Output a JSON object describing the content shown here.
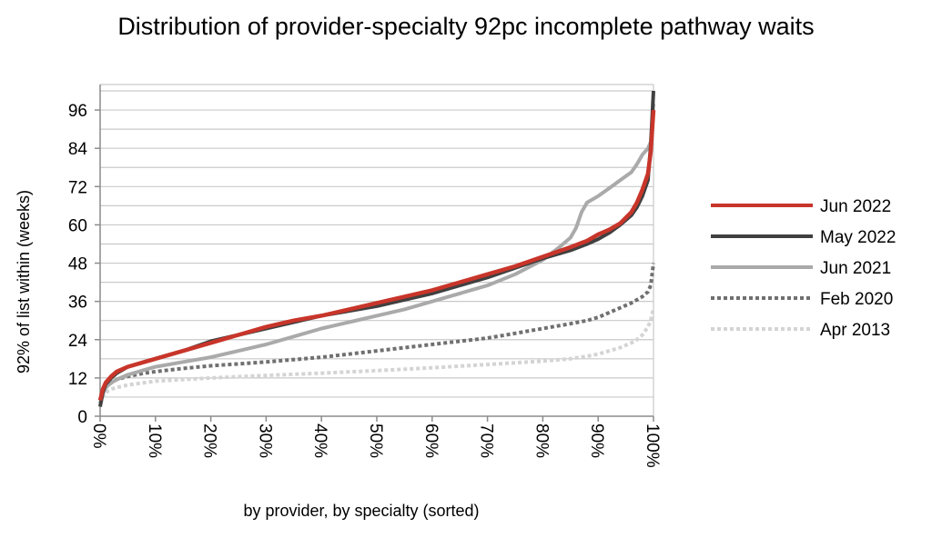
{
  "chart_data": {
    "type": "line",
    "title": "Distribution of provider-specialty 92pc incomplete pathway waits",
    "xlabel": "by provider, by specialty (sorted)",
    "ylabel": "92% of list within (weeks)",
    "xlim": [
      0,
      100
    ],
    "ylim": [
      0,
      104
    ],
    "yticks": [
      0,
      12,
      24,
      36,
      48,
      60,
      72,
      84,
      96
    ],
    "xticks": [
      "0%",
      "10%",
      "20%",
      "30%",
      "40%",
      "50%",
      "60%",
      "70%",
      "80%",
      "90%",
      "100%"
    ],
    "grid": "horizontal",
    "legend_position": "right",
    "series": [
      {
        "name": "Apr 2013",
        "color": "#d4d4d4",
        "style": "dotted",
        "x": [
          0,
          0.5,
          1,
          2,
          3,
          5,
          8,
          10,
          15,
          20,
          30,
          40,
          50,
          60,
          70,
          80,
          85,
          88,
          90,
          92,
          94,
          96,
          97,
          98,
          99,
          99.5,
          100
        ],
        "y": [
          4,
          6,
          7.5,
          8.5,
          9,
          9.8,
          10.5,
          11,
          11.5,
          12,
          12.8,
          13.5,
          14.3,
          15.2,
          16.2,
          17.3,
          18,
          18.8,
          19.5,
          20.5,
          21.5,
          23,
          24,
          25.5,
          28,
          30,
          34
        ]
      },
      {
        "name": "Feb 2020",
        "color": "#707070",
        "style": "dotted",
        "x": [
          0,
          0.5,
          1,
          2,
          3,
          5,
          8,
          10,
          15,
          20,
          30,
          40,
          50,
          60,
          70,
          75,
          80,
          85,
          88,
          90,
          92,
          94,
          96,
          97,
          98,
          99,
          99.5,
          100
        ],
        "y": [
          5,
          7.5,
          9,
          10.5,
          11.5,
          12.5,
          13.5,
          14,
          15,
          15.8,
          17,
          18.5,
          20.5,
          22.5,
          24.5,
          26,
          27.5,
          29,
          30,
          31,
          32.5,
          34,
          35.5,
          36.5,
          37.5,
          39,
          41,
          48
        ]
      },
      {
        "name": "Jun 2021",
        "color": "#aaaaaa",
        "style": "solid",
        "x": [
          0,
          0.5,
          1,
          2,
          3,
          5,
          8,
          10,
          15,
          20,
          25,
          30,
          35,
          40,
          45,
          50,
          55,
          60,
          65,
          70,
          75,
          80,
          83,
          85,
          86,
          87,
          88,
          90,
          92,
          94,
          96,
          97,
          98,
          99,
          99.5,
          100
        ],
        "y": [
          4,
          7,
          9,
          10.5,
          11.5,
          13,
          14.5,
          15.5,
          17,
          18.5,
          20.5,
          22.5,
          25,
          27.5,
          29.5,
          31.5,
          33.5,
          36,
          38.5,
          41,
          44.5,
          49,
          53,
          56,
          59,
          64,
          67,
          69,
          71.5,
          74,
          76.5,
          79,
          82,
          84,
          86,
          98
        ]
      },
      {
        "name": "May 2022",
        "color": "#404040",
        "style": "solid",
        "x": [
          0,
          0.5,
          1,
          2,
          3,
          5,
          8,
          10,
          15,
          20,
          25,
          30,
          35,
          40,
          45,
          50,
          55,
          60,
          65,
          70,
          75,
          80,
          85,
          88,
          90,
          92,
          94,
          96,
          97,
          98,
          99,
          99.5,
          100
        ],
        "y": [
          3,
          7.5,
          10,
          12,
          13.5,
          15.5,
          17,
          18,
          20.5,
          23.5,
          25.5,
          27.5,
          29.5,
          31.5,
          33,
          34.5,
          36.5,
          38.5,
          41,
          43.5,
          46.5,
          49.5,
          52,
          54,
          55.5,
          57.5,
          60,
          63,
          65.5,
          69,
          74,
          85,
          102
        ]
      },
      {
        "name": "Jun 2022",
        "color": "#c8352a",
        "style": "solid",
        "x": [
          0,
          0.5,
          1,
          2,
          3,
          5,
          8,
          10,
          15,
          20,
          25,
          30,
          35,
          40,
          45,
          50,
          55,
          60,
          65,
          70,
          75,
          80,
          85,
          88,
          90,
          92,
          94,
          96,
          97,
          98,
          99,
          99.5,
          100
        ],
        "y": [
          5,
          8.5,
          10.5,
          12.5,
          14,
          15.5,
          17,
          18,
          20.5,
          23,
          25.5,
          28,
          30,
          31.5,
          33.5,
          35.5,
          37.5,
          39.5,
          42,
          44.5,
          47,
          50,
          53,
          55,
          57,
          58.5,
          60.5,
          64,
          67,
          71,
          76,
          83,
          96
        ]
      }
    ],
    "legend_order": [
      "Jun 2022",
      "May 2022",
      "Jun 2021",
      "Feb 2020",
      "Apr 2013"
    ]
  }
}
